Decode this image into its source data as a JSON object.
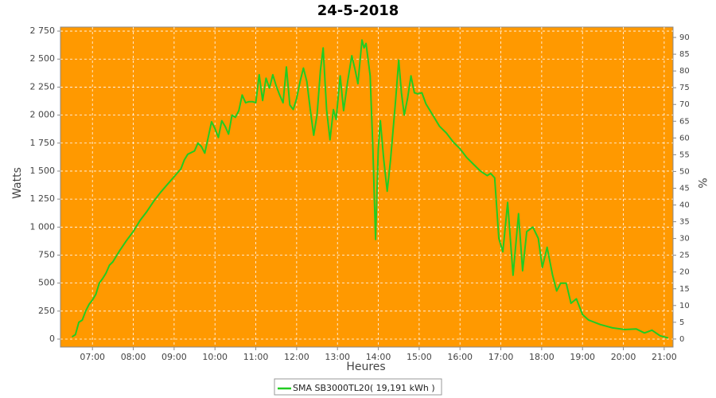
{
  "chart_data": {
    "type": "line",
    "title": "24-5-2018",
    "x_label": "Heures",
    "y_label": "Watts",
    "y2_label": "%",
    "background": "#ff9900",
    "grid": true,
    "legend": "bottom",
    "xlim": [
      "06:13",
      "21:13"
    ],
    "xticks": [
      "07:00",
      "08:00",
      "09:00",
      "10:00",
      "11:00",
      "12:00",
      "13:00",
      "14:00",
      "15:00",
      "16:00",
      "17:00",
      "18:00",
      "19:00",
      "20:00",
      "21:00"
    ],
    "ylim": [
      -71,
      2786
    ],
    "yticks": [
      0,
      250,
      500,
      750,
      {
        "value": 1000,
        "label": "1 000"
      },
      {
        "value": 1250,
        "label": "1 250"
      },
      {
        "value": 1500,
        "label": "1 500"
      },
      {
        "value": 1750,
        "label": "1 750"
      },
      {
        "value": 2000,
        "label": "2 000"
      },
      {
        "value": 2250,
        "label": "2 250"
      },
      {
        "value": 2500,
        "label": "2 500"
      },
      {
        "value": 2750,
        "label": "2 750"
      }
    ],
    "y2lim": [
      -2.4,
      93.1
    ],
    "y2ticks": [
      0,
      5,
      10,
      15,
      20,
      25,
      30,
      35,
      40,
      45,
      50,
      55,
      60,
      65,
      70,
      75,
      80,
      85,
      90
    ],
    "x": [
      "06:30",
      "06:35",
      "06:40",
      "06:45",
      "06:50",
      "06:55",
      "07:00",
      "07:05",
      "07:10",
      "07:15",
      "07:20",
      "07:25",
      "07:30",
      "07:40",
      "07:50",
      "08:00",
      "08:10",
      "08:20",
      "08:30",
      "08:40",
      "08:50",
      "09:00",
      "09:10",
      "09:15",
      "09:20",
      "09:30",
      "09:35",
      "09:40",
      "09:45",
      "09:50",
      "09:55",
      "10:00",
      "10:05",
      "10:10",
      "10:15",
      "10:20",
      "10:25",
      "10:30",
      "10:35",
      "10:40",
      "10:45",
      "10:50",
      "10:55",
      "11:00",
      "11:05",
      "11:10",
      "11:15",
      "11:20",
      "11:25",
      "11:30",
      "11:35",
      "11:40",
      "11:45",
      "11:50",
      "11:55",
      "12:00",
      "12:05",
      "12:10",
      "12:15",
      "12:20",
      "12:25",
      "12:30",
      "12:35",
      "12:39",
      "12:44",
      "12:49",
      "12:54",
      "12:58",
      "13:04",
      "13:09",
      "13:15",
      "13:21",
      "13:26",
      "13:30",
      "13:36",
      "13:39",
      "13:42",
      "13:48",
      "13:52",
      "13:56",
      "14:00",
      "14:03",
      "14:08",
      "14:13",
      "14:18",
      "14:25",
      "14:30",
      "14:34",
      "14:38",
      "14:43",
      "14:48",
      "14:53",
      "14:58",
      "15:04",
      "15:10",
      "15:20",
      "15:30",
      "15:40",
      "15:50",
      "16:00",
      "16:10",
      "16:20",
      "16:30",
      "16:40",
      "16:45",
      "16:51",
      "16:57",
      "17:03",
      "17:10",
      "17:18",
      "17:26",
      "17:32",
      "17:38",
      "17:47",
      "17:55",
      "18:01",
      "18:08",
      "18:16",
      "18:22",
      "18:28",
      "18:36",
      "18:43",
      "18:51",
      "19:00",
      "19:09",
      "19:26",
      "19:44",
      "20:02",
      "20:19",
      "20:31",
      "20:42",
      "20:54",
      "21:06"
    ],
    "series": [
      {
        "name": "SMA SB3000TL20( 19,191 kWh )",
        "color": "#22cc22",
        "values": [
          20,
          40,
          150,
          170,
          250,
          310,
          350,
          400,
          500,
          540,
          590,
          660,
          690,
          790,
          880,
          960,
          1060,
          1140,
          1230,
          1310,
          1380,
          1450,
          1520,
          1600,
          1650,
          1680,
          1750,
          1720,
          1660,
          1800,
          1940,
          1880,
          1800,
          1950,
          1900,
          1830,
          2000,
          1980,
          2040,
          2180,
          2110,
          2120,
          2120,
          2110,
          2360,
          2130,
          2330,
          2240,
          2360,
          2260,
          2180,
          2110,
          2430,
          2090,
          2050,
          2150,
          2300,
          2420,
          2300,
          2050,
          1820,
          2000,
          2400,
          2600,
          2050,
          1780,
          2050,
          1960,
          2350,
          2040,
          2300,
          2530,
          2400,
          2280,
          2670,
          2600,
          2640,
          2350,
          1700,
          890,
          1700,
          1950,
          1600,
          1320,
          1600,
          2100,
          2490,
          2200,
          2000,
          2150,
          2350,
          2200,
          2190,
          2200,
          2100,
          2000,
          1900,
          1840,
          1760,
          1700,
          1620,
          1560,
          1500,
          1460,
          1480,
          1440,
          900,
          780,
          1220,
          570,
          1120,
          610,
          960,
          1000,
          900,
          640,
          820,
          570,
          430,
          500,
          500,
          320,
          360,
          220,
          170,
          130,
          100,
          85,
          90,
          55,
          80,
          30,
          10
        ]
      }
    ]
  }
}
